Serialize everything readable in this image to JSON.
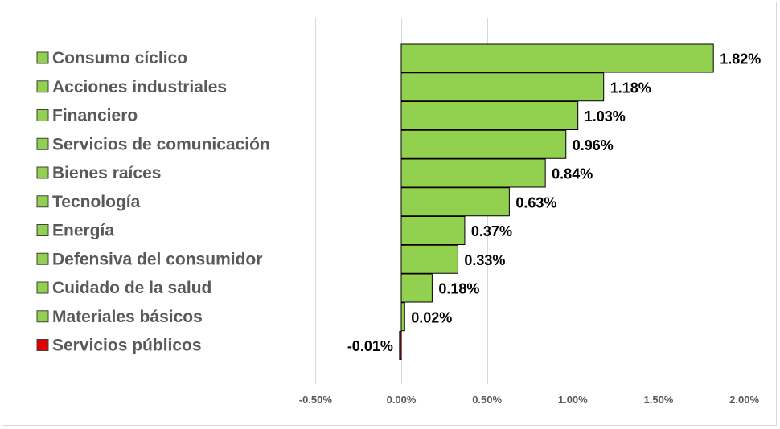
{
  "chart_data": {
    "type": "bar",
    "orientation": "horizontal",
    "title": "",
    "xlabel": "",
    "ylabel": "",
    "xlim": [
      -0.5,
      2.0
    ],
    "x_ticks": [
      "-0.50%",
      "0.00%",
      "0.50%",
      "1.00%",
      "1.50%",
      "2.00%"
    ],
    "x_tick_values": [
      -0.5,
      0.0,
      0.5,
      1.0,
      1.5,
      2.0
    ],
    "grid": "vertical",
    "legend_position": "left",
    "categories": [
      "Consumo cíclico",
      "Acciones industriales",
      "Financiero",
      "Servicios de comunicación",
      "Bienes raíces",
      "Tecnología",
      "Energía",
      "Defensiva del consumidor",
      "Cuidado de la salud",
      "Materiales básicos",
      "Servicios públicos"
    ],
    "values": [
      1.82,
      1.18,
      1.03,
      0.96,
      0.84,
      0.63,
      0.37,
      0.33,
      0.18,
      0.02,
      -0.01
    ],
    "labels": [
      "1.82%",
      "1.18%",
      "1.03%",
      "0.96%",
      "0.84%",
      "0.63%",
      "0.37%",
      "0.33%",
      "0.18%",
      "0.02%",
      "-0.01%"
    ],
    "colors": {
      "positive": "#92d050",
      "negative": "#e00000",
      "bar_border": "#000000",
      "grid": "#d9d9d9"
    }
  }
}
